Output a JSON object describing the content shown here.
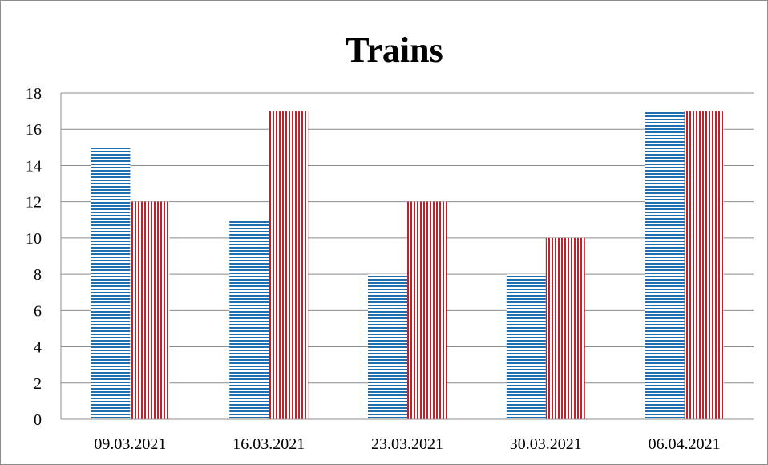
{
  "chart_data": {
    "type": "bar",
    "title": "Trains",
    "xlabel": "",
    "ylabel": "",
    "categories": [
      "09.03.2021",
      "16.03.2021",
      "23.03.2021",
      "30.03.2021",
      "06.04.2021"
    ],
    "series": [
      {
        "values": [
          15,
          11,
          8,
          8,
          17
        ],
        "color": "#1f6fb0",
        "pattern": "horizontal-stripes"
      },
      {
        "values": [
          12,
          17,
          12,
          10,
          17
        ],
        "color": "#c0202a",
        "pattern": "vertical-stripes"
      }
    ],
    "ylim": [
      0,
      18
    ],
    "yticks": [
      0,
      2,
      4,
      6,
      8,
      10,
      12,
      14,
      16,
      18
    ],
    "grid": true,
    "legend": "none"
  }
}
